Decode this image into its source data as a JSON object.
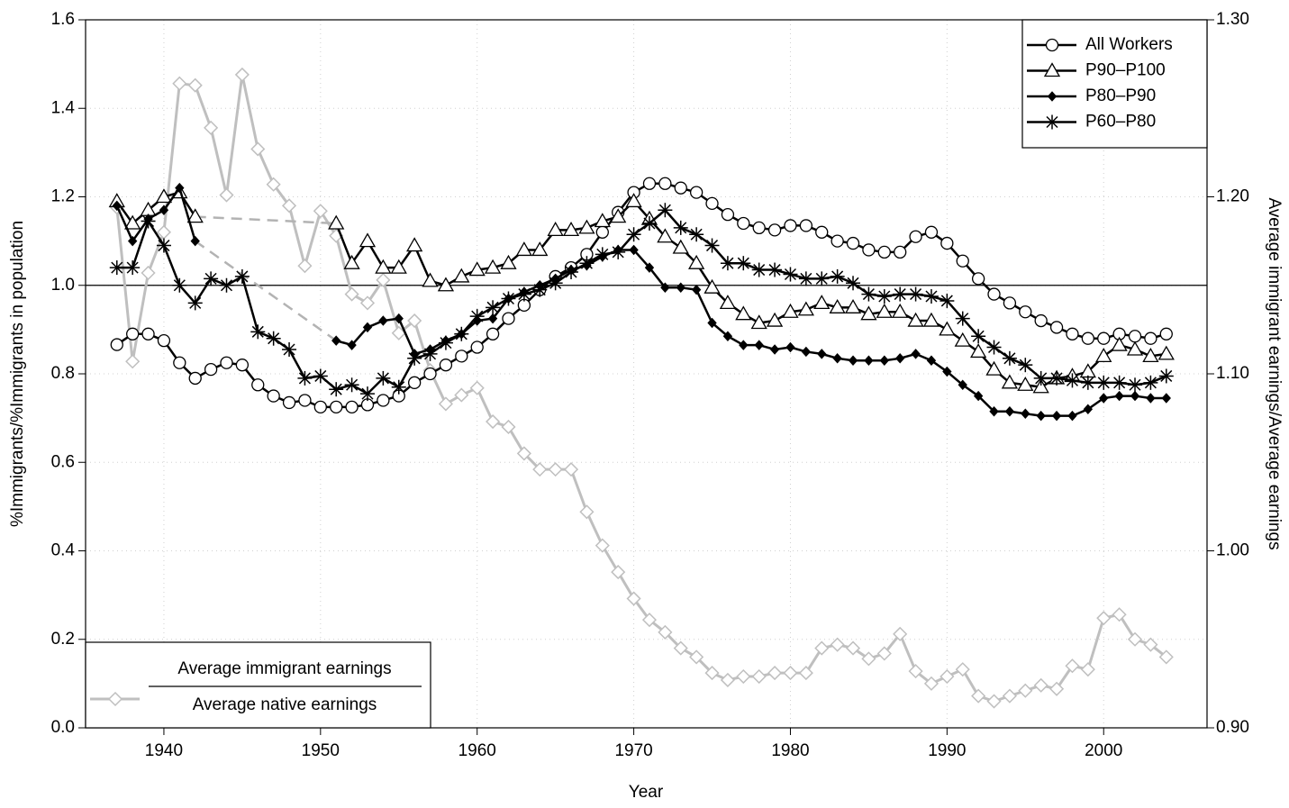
{
  "chart_data": {
    "type": "line",
    "x_label": "Year",
    "y_label": "%Immigrants/%Immigrants in population",
    "y2_label": "Average immigrant earnings/Average earnings",
    "x": [
      1937,
      1938,
      1939,
      1940,
      1941,
      1942,
      1943,
      1944,
      1945,
      1946,
      1947,
      1948,
      1949,
      1950,
      1951,
      1952,
      1953,
      1954,
      1955,
      1956,
      1957,
      1958,
      1959,
      1960,
      1961,
      1962,
      1963,
      1964,
      1965,
      1966,
      1967,
      1968,
      1969,
      1970,
      1971,
      1972,
      1973,
      1974,
      1975,
      1976,
      1977,
      1978,
      1979,
      1980,
      1981,
      1982,
      1983,
      1984,
      1985,
      1986,
      1987,
      1988,
      1989,
      1990,
      1991,
      1992,
      1993,
      1994,
      1995,
      1996,
      1997,
      1998,
      1999,
      2000,
      2001,
      2002,
      2003,
      2004
    ],
    "xlim": [
      1935,
      2006.6
    ],
    "xticks": [
      1940,
      1950,
      1960,
      1970,
      1980,
      1990,
      2000
    ],
    "ylim": [
      0,
      1.6
    ],
    "yticks": [
      {
        "value": 0,
        "label": "0.0"
      },
      0.2,
      0.4,
      0.6,
      0.8,
      {
        "value": 1,
        "label": "1.0"
      },
      1.2,
      1.4,
      1.6
    ],
    "y2lim": [
      0.9,
      1.3
    ],
    "y2ticks": [
      {
        "value": 0.9,
        "label": "0.90"
      },
      {
        "value": 1.0,
        "label": "1.00"
      },
      {
        "value": 1.1,
        "label": "1.10"
      },
      {
        "value": 1.2,
        "label": "1.20"
      },
      {
        "value": 1.3,
        "label": "1.30"
      }
    ],
    "grid": true,
    "reference_line": 1,
    "gap_line_color": "#b3b3b3",
    "legend_position": "upper right",
    "series": [
      {
        "name": "All Workers",
        "color": "#000000",
        "marker": "circle",
        "values": [
          0.866,
          0.89,
          0.89,
          0.875,
          0.825,
          0.79,
          0.81,
          0.825,
          0.82,
          0.775,
          0.75,
          0.735,
          0.74,
          0.725,
          0.725,
          0.725,
          0.73,
          0.74,
          0.75,
          0.78,
          0.8,
          0.82,
          0.84,
          0.86,
          0.89,
          0.925,
          0.955,
          0.99,
          1.02,
          1.04,
          1.07,
          1.12,
          1.165,
          1.21,
          1.23,
          1.23,
          1.22,
          1.21,
          1.185,
          1.16,
          1.14,
          1.13,
          1.125,
          1.135,
          1.135,
          1.12,
          1.1,
          1.095,
          1.08,
          1.075,
          1.075,
          1.11,
          1.12,
          1.095,
          1.055,
          1.015,
          0.98,
          0.96,
          0.94,
          0.92,
          0.905,
          0.89,
          0.88,
          0.88,
          0.89,
          0.885,
          0.88,
          0.89
        ]
      },
      {
        "name": "P90–P100",
        "color": "#000000",
        "marker": "triangle",
        "values": [
          1.19,
          1.14,
          1.17,
          1.2,
          1.21,
          1.155,
          null,
          null,
          null,
          null,
          null,
          null,
          null,
          null,
          1.14,
          1.05,
          1.1,
          1.04,
          1.04,
          1.09,
          1.01,
          1.0,
          1.02,
          1.035,
          1.04,
          1.05,
          1.08,
          1.08,
          1.125,
          1.125,
          1.13,
          1.145,
          1.155,
          1.19,
          1.15,
          1.11,
          1.085,
          1.05,
          0.995,
          0.96,
          0.935,
          0.915,
          0.92,
          0.94,
          0.945,
          0.96,
          0.95,
          0.95,
          0.935,
          0.94,
          0.94,
          0.92,
          0.92,
          0.9,
          0.875,
          0.85,
          0.81,
          0.78,
          0.775,
          0.77,
          0.79,
          0.795,
          0.805,
          0.84,
          0.865,
          0.855,
          0.84,
          0.845
        ]
      },
      {
        "name": "P80–P90",
        "color": "#000000",
        "marker": "diamond",
        "values": [
          1.18,
          1.1,
          1.15,
          1.17,
          1.22,
          1.1,
          null,
          null,
          null,
          null,
          null,
          null,
          null,
          null,
          0.875,
          0.865,
          0.905,
          0.92,
          0.925,
          0.845,
          0.855,
          0.875,
          0.89,
          0.92,
          0.925,
          0.97,
          0.985,
          1.0,
          1.015,
          1.035,
          1.045,
          1.065,
          1.08,
          1.08,
          1.04,
          0.995,
          0.995,
          0.99,
          0.915,
          0.885,
          0.865,
          0.865,
          0.855,
          0.86,
          0.85,
          0.845,
          0.835,
          0.83,
          0.83,
          0.83,
          0.835,
          0.845,
          0.83,
          0.805,
          0.775,
          0.75,
          0.715,
          0.715,
          0.71,
          0.705,
          0.705,
          0.705,
          0.72,
          0.745,
          0.75,
          0.75,
          0.745,
          0.745
        ]
      },
      {
        "name": "P60–P80",
        "color": "#000000",
        "marker": "star",
        "values": [
          1.04,
          1.04,
          1.145,
          1.09,
          1.0,
          0.96,
          1.015,
          1.0,
          1.02,
          0.895,
          0.88,
          0.855,
          0.79,
          0.795,
          0.765,
          0.775,
          0.755,
          0.79,
          0.77,
          0.835,
          0.845,
          0.87,
          0.89,
          0.93,
          0.95,
          0.97,
          0.98,
          0.99,
          1.005,
          1.03,
          1.05,
          1.07,
          1.075,
          1.115,
          1.14,
          1.17,
          1.13,
          1.115,
          1.09,
          1.05,
          1.05,
          1.035,
          1.035,
          1.025,
          1.015,
          1.015,
          1.02,
          1.005,
          0.98,
          0.975,
          0.98,
          0.98,
          0.975,
          0.965,
          0.925,
          0.885,
          0.86,
          0.835,
          0.82,
          0.79,
          0.79,
          0.785,
          0.78,
          0.78,
          0.78,
          0.775,
          0.78,
          0.795
        ]
      },
      {
        "name_numerator": "Average immigrant earnings",
        "name_denominator": "Average native earnings",
        "color": "#bfbfbf",
        "marker": "hollow-diamond",
        "axis": "y2",
        "legend_position": "lower left",
        "values": [
          1.194,
          1.107,
          1.157,
          1.18,
          1.264,
          1.263,
          1.239,
          1.201,
          1.269,
          1.227,
          1.207,
          1.195,
          1.161,
          1.192,
          1.178,
          1.145,
          1.14,
          1.153,
          1.123,
          1.13,
          1.102,
          1.083,
          1.088,
          1.092,
          1.073,
          1.07,
          1.055,
          1.046,
          1.046,
          1.046,
          1.022,
          1.003,
          0.988,
          0.973,
          0.961,
          0.954,
          0.945,
          0.94,
          0.931,
          0.927,
          0.929,
          0.929,
          0.931,
          0.931,
          0.931,
          0.945,
          0.947,
          0.945,
          0.939,
          0.942,
          0.953,
          0.932,
          0.925,
          0.929,
          0.933,
          0.918,
          0.915,
          0.918,
          0.921,
          0.924,
          0.922,
          0.935,
          0.933,
          0.962,
          0.964,
          0.95,
          0.947,
          0.94
        ]
      }
    ]
  }
}
